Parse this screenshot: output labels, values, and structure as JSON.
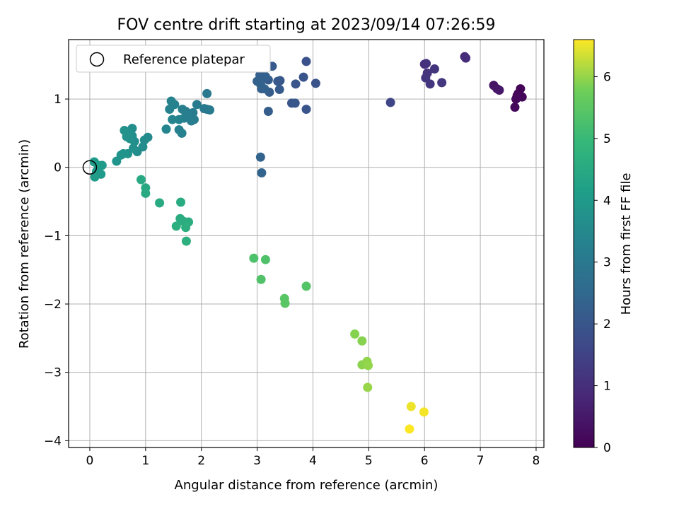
{
  "chart_data": {
    "type": "scatter",
    "title": "FOV centre drift starting at 2023/09/14 07:26:59",
    "xlabel": "Angular distance from reference (arcmin)",
    "ylabel": "Rotation from reference (arcmin)",
    "xlim": [
      -0.38,
      8.14
    ],
    "ylim": [
      -4.1,
      1.87
    ],
    "xticks": [
      0,
      1,
      2,
      3,
      4,
      5,
      6,
      7,
      8
    ],
    "yticks": [
      -4,
      -3,
      -2,
      -1,
      0,
      1
    ],
    "grid": true,
    "legend": {
      "placement": "top-left",
      "entries": [
        "Reference platepar"
      ]
    },
    "reference_point": {
      "x": 0,
      "y": 0
    },
    "colorbar": {
      "label": "Hours from first FF file",
      "min": 0,
      "max": 6.6,
      "ticks": [
        0,
        1,
        2,
        3,
        4,
        5,
        6
      ],
      "colormap": "viridis"
    },
    "points": [
      {
        "x": 7.72,
        "y": 1.15,
        "t": 0.05
      },
      {
        "x": 7.68,
        "y": 1.08,
        "t": 0.08
      },
      {
        "x": 7.75,
        "y": 1.03,
        "t": 0.1
      },
      {
        "x": 7.66,
        "y": 1.05,
        "t": 0.12
      },
      {
        "x": 7.64,
        "y": 1.0,
        "t": 0.14
      },
      {
        "x": 7.62,
        "y": 0.88,
        "t": 0.16
      },
      {
        "x": 7.24,
        "y": 1.2,
        "t": 0.4
      },
      {
        "x": 7.3,
        "y": 1.15,
        "t": 0.42
      },
      {
        "x": 7.34,
        "y": 1.13,
        "t": 0.45
      },
      {
        "x": 6.72,
        "y": 1.62,
        "t": 0.9
      },
      {
        "x": 6.74,
        "y": 1.6,
        "t": 0.92
      },
      {
        "x": 6.0,
        "y": 1.51,
        "t": 1.05
      },
      {
        "x": 6.03,
        "y": 1.52,
        "t": 1.07
      },
      {
        "x": 6.05,
        "y": 1.38,
        "t": 1.1
      },
      {
        "x": 6.02,
        "y": 1.31,
        "t": 1.12
      },
      {
        "x": 6.18,
        "y": 1.44,
        "t": 1.12
      },
      {
        "x": 6.1,
        "y": 1.22,
        "t": 1.15
      },
      {
        "x": 6.31,
        "y": 1.24,
        "t": 1.18
      },
      {
        "x": 5.39,
        "y": 0.95,
        "t": 1.55
      },
      {
        "x": 3.88,
        "y": 1.55,
        "t": 1.9
      },
      {
        "x": 4.05,
        "y": 1.23,
        "t": 1.92
      },
      {
        "x": 3.83,
        "y": 1.32,
        "t": 1.95
      },
      {
        "x": 3.69,
        "y": 1.22,
        "t": 1.97
      },
      {
        "x": 3.88,
        "y": 0.85,
        "t": 1.98
      },
      {
        "x": 3.62,
        "y": 0.94,
        "t": 2.0
      },
      {
        "x": 3.68,
        "y": 0.94,
        "t": 2.02
      },
      {
        "x": 3.41,
        "y": 1.27,
        "t": 2.05
      },
      {
        "x": 3.37,
        "y": 1.26,
        "t": 2.07
      },
      {
        "x": 3.4,
        "y": 1.14,
        "t": 2.1
      },
      {
        "x": 3.27,
        "y": 1.48,
        "t": 2.12
      },
      {
        "x": 3.2,
        "y": 1.28,
        "t": 2.15
      },
      {
        "x": 3.22,
        "y": 1.1,
        "t": 2.17
      },
      {
        "x": 3.2,
        "y": 0.82,
        "t": 2.2
      },
      {
        "x": 3.1,
        "y": 1.3,
        "t": 2.22
      },
      {
        "x": 3.05,
        "y": 1.35,
        "t": 2.24
      },
      {
        "x": 3.15,
        "y": 1.33,
        "t": 2.26
      },
      {
        "x": 3.08,
        "y": 1.15,
        "t": 2.28
      },
      {
        "x": 3.13,
        "y": 1.15,
        "t": 2.3
      },
      {
        "x": 3.0,
        "y": 1.26,
        "t": 2.32
      },
      {
        "x": 3.06,
        "y": 1.22,
        "t": 2.34
      },
      {
        "x": 3.06,
        "y": 0.15,
        "t": 2.36
      },
      {
        "x": 3.08,
        "y": -0.08,
        "t": 2.38
      },
      {
        "x": 2.1,
        "y": 1.08,
        "t": 3.0
      },
      {
        "x": 2.1,
        "y": 0.85,
        "t": 3.02
      },
      {
        "x": 2.15,
        "y": 0.84,
        "t": 3.04
      },
      {
        "x": 2.05,
        "y": 0.86,
        "t": 3.06
      },
      {
        "x": 1.92,
        "y": 0.92,
        "t": 3.08
      },
      {
        "x": 1.85,
        "y": 0.8,
        "t": 3.1
      },
      {
        "x": 1.87,
        "y": 0.7,
        "t": 3.12
      },
      {
        "x": 1.82,
        "y": 0.68,
        "t": 3.14
      },
      {
        "x": 1.76,
        "y": 0.78,
        "t": 3.16
      },
      {
        "x": 1.72,
        "y": 0.82,
        "t": 3.18
      },
      {
        "x": 1.66,
        "y": 0.85,
        "t": 3.2
      },
      {
        "x": 1.69,
        "y": 0.72,
        "t": 3.22
      },
      {
        "x": 1.6,
        "y": 0.55,
        "t": 3.24
      },
      {
        "x": 1.65,
        "y": 0.5,
        "t": 3.26
      },
      {
        "x": 1.6,
        "y": 0.7,
        "t": 3.28
      },
      {
        "x": 1.52,
        "y": 0.92,
        "t": 3.3
      },
      {
        "x": 1.46,
        "y": 0.97,
        "t": 3.32
      },
      {
        "x": 1.43,
        "y": 0.85,
        "t": 3.34
      },
      {
        "x": 1.48,
        "y": 0.7,
        "t": 3.36
      },
      {
        "x": 1.37,
        "y": 0.56,
        "t": 3.38
      },
      {
        "x": 1.04,
        "y": 0.44,
        "t": 3.55
      },
      {
        "x": 0.98,
        "y": 0.4,
        "t": 3.57
      },
      {
        "x": 0.95,
        "y": 0.3,
        "t": 3.6
      },
      {
        "x": 0.85,
        "y": 0.23,
        "t": 3.62
      },
      {
        "x": 0.76,
        "y": 0.57,
        "t": 3.64
      },
      {
        "x": 0.76,
        "y": 0.46,
        "t": 3.66
      },
      {
        "x": 0.8,
        "y": 0.38,
        "t": 3.68
      },
      {
        "x": 0.78,
        "y": 0.28,
        "t": 3.7
      },
      {
        "x": 0.72,
        "y": 0.42,
        "t": 3.72
      },
      {
        "x": 0.7,
        "y": 0.5,
        "t": 3.74
      },
      {
        "x": 0.62,
        "y": 0.54,
        "t": 3.76
      },
      {
        "x": 0.66,
        "y": 0.45,
        "t": 3.78
      },
      {
        "x": 0.68,
        "y": 0.2,
        "t": 3.8
      },
      {
        "x": 0.6,
        "y": 0.2,
        "t": 3.82
      },
      {
        "x": 0.56,
        "y": 0.18,
        "t": 3.84
      },
      {
        "x": 0.48,
        "y": 0.09,
        "t": 3.86
      },
      {
        "x": 0.22,
        "y": 0.03,
        "t": 4.0
      },
      {
        "x": 0.2,
        "y": -0.1,
        "t": 4.02
      },
      {
        "x": 0.12,
        "y": -0.06,
        "t": 4.04
      },
      {
        "x": 0.09,
        "y": -0.14,
        "t": 4.06
      },
      {
        "x": 0.08,
        "y": 0.08,
        "t": 4.08
      },
      {
        "x": 0.15,
        "y": 0.03,
        "t": 4.1
      },
      {
        "x": 0.92,
        "y": -0.18,
        "t": 4.45
      },
      {
        "x": 1.0,
        "y": -0.3,
        "t": 4.47
      },
      {
        "x": 1.0,
        "y": -0.38,
        "t": 4.5
      },
      {
        "x": 1.25,
        "y": -0.52,
        "t": 4.52
      },
      {
        "x": 1.63,
        "y": -0.51,
        "t": 4.55
      },
      {
        "x": 1.62,
        "y": -0.75,
        "t": 4.57
      },
      {
        "x": 1.68,
        "y": -0.79,
        "t": 4.6
      },
      {
        "x": 1.77,
        "y": -0.8,
        "t": 4.62
      },
      {
        "x": 1.72,
        "y": -0.88,
        "t": 4.64
      },
      {
        "x": 1.55,
        "y": -0.86,
        "t": 4.66
      },
      {
        "x": 1.73,
        "y": -1.08,
        "t": 4.68
      },
      {
        "x": 2.94,
        "y": -1.33,
        "t": 5.3
      },
      {
        "x": 3.15,
        "y": -1.35,
        "t": 5.32
      },
      {
        "x": 3.07,
        "y": -1.64,
        "t": 5.35
      },
      {
        "x": 3.88,
        "y": -1.74,
        "t": 5.4
      },
      {
        "x": 3.49,
        "y": -1.92,
        "t": 5.45
      },
      {
        "x": 3.5,
        "y": -1.99,
        "t": 5.47
      },
      {
        "x": 4.75,
        "y": -2.44,
        "t": 5.9
      },
      {
        "x": 4.88,
        "y": -2.54,
        "t": 5.92
      },
      {
        "x": 4.88,
        "y": -2.89,
        "t": 5.95
      },
      {
        "x": 4.97,
        "y": -2.84,
        "t": 5.97
      },
      {
        "x": 4.99,
        "y": -2.9,
        "t": 5.99
      },
      {
        "x": 4.98,
        "y": -3.22,
        "t": 6.02
      },
      {
        "x": 5.76,
        "y": -3.5,
        "t": 6.5
      },
      {
        "x": 5.99,
        "y": -3.58,
        "t": 6.55
      },
      {
        "x": 5.73,
        "y": -3.83,
        "t": 6.6
      }
    ]
  }
}
